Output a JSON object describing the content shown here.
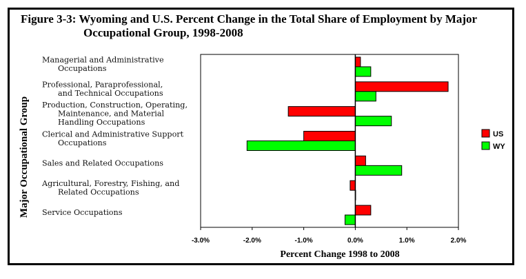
{
  "chart_data": {
    "type": "bar",
    "orientation": "horizontal",
    "title_line1": "Figure 3-3:  Wyoming and U.S. Percent Change in the Total Share of Employment by Major",
    "title_line2": "Occupational Group, 1998-2008",
    "xlabel": "Percent Change 1998 to 2008",
    "ylabel": "Major Occupational Group",
    "xlim": [
      -3.0,
      2.0
    ],
    "xticks": [
      "-3.0%",
      "-2.0%",
      "-1.0%",
      "0.0%",
      "1.0%",
      "2.0%"
    ],
    "categories": [
      [
        "Managerial and Administrative",
        "Occupations"
      ],
      [
        "Professional, Paraprofessional,",
        "and Technical Occupations"
      ],
      [
        "Production, Construction, Operating,",
        "Maintenance, and Material",
        "Handling Occupations"
      ],
      [
        "Clerical and Administrative Support",
        "Occupations"
      ],
      [
        "Sales and Related Occupations"
      ],
      [
        "Agricultural, Forestry, Fishing, and",
        "Related Occupations"
      ],
      [
        "Service Occupations"
      ]
    ],
    "series": [
      {
        "name": "US",
        "color": "#ff0000",
        "values": [
          0.1,
          1.8,
          -1.3,
          -1.0,
          0.2,
          -0.1,
          0.3
        ]
      },
      {
        "name": "WY",
        "color": "#00ff00",
        "values": [
          0.3,
          0.4,
          0.7,
          -2.1,
          0.9,
          0.0,
          -0.2
        ]
      }
    ],
    "legend_position": "right",
    "grid": false
  }
}
